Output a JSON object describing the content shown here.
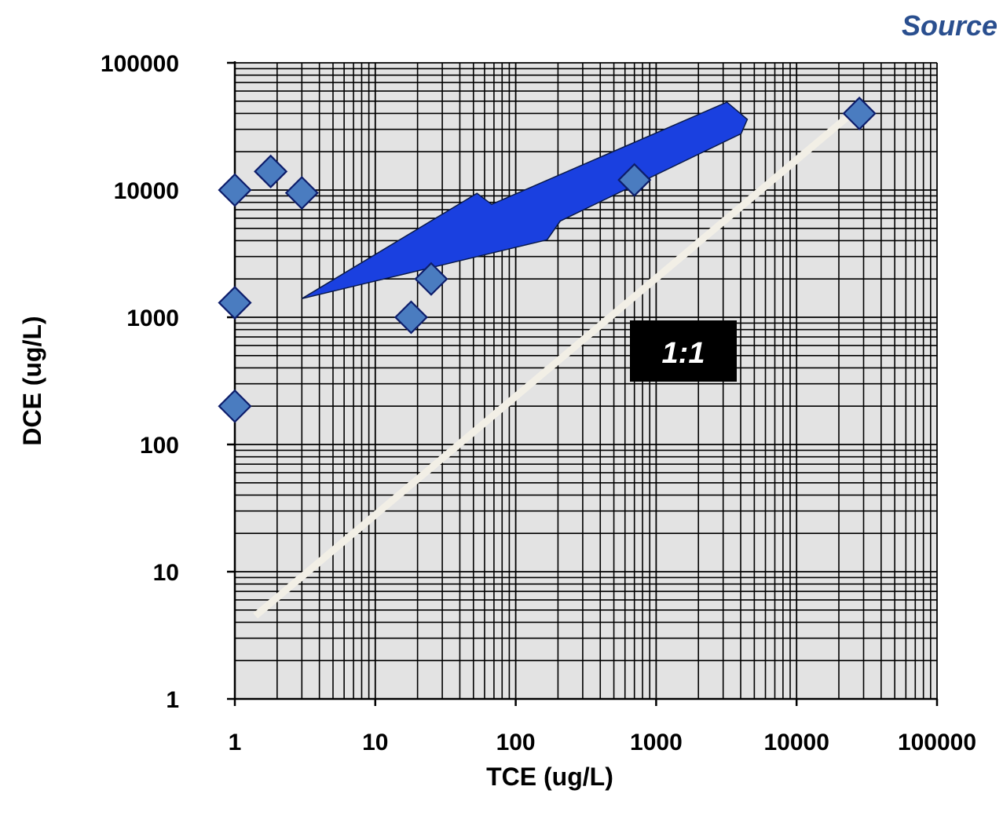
{
  "corner_label": "Source",
  "chart_data": {
    "type": "scatter",
    "xlabel": "TCE (ug/L)",
    "ylabel": "DCE (ug/L)",
    "x_scale": "log",
    "y_scale": "log",
    "xlim": [
      1,
      100000
    ],
    "ylim": [
      1,
      100000
    ],
    "grid": true,
    "x_ticks": [
      "1",
      "10",
      "100",
      "1000",
      "10000",
      "100000"
    ],
    "y_ticks": [
      "1",
      "10",
      "100",
      "1000",
      "10000",
      "100000"
    ],
    "series": [
      {
        "marker": "diamond",
        "color": "#4a7cc0",
        "points": [
          {
            "x": 1,
            "y": 10000
          },
          {
            "x": 1,
            "y": 1300
          },
          {
            "x": 1,
            "y": 200
          },
          {
            "x": 1.8,
            "y": 14000
          },
          {
            "x": 3,
            "y": 9500
          },
          {
            "x": 18,
            "y": 1000
          },
          {
            "x": 25,
            "y": 2000
          },
          {
            "x": 700,
            "y": 12000
          },
          {
            "x": 28000,
            "y": 40000
          }
        ]
      }
    ],
    "reference_line": {
      "label": "1:1",
      "x": [
        1.4,
        28000
      ],
      "y": [
        4.5,
        45000
      ],
      "color": "#f2efe6"
    },
    "trend_arrow": {
      "from": {
        "x": 3,
        "y": 1400
      },
      "to": {
        "x": 4500,
        "y": 35000
      },
      "color": "#1a40e0"
    }
  }
}
